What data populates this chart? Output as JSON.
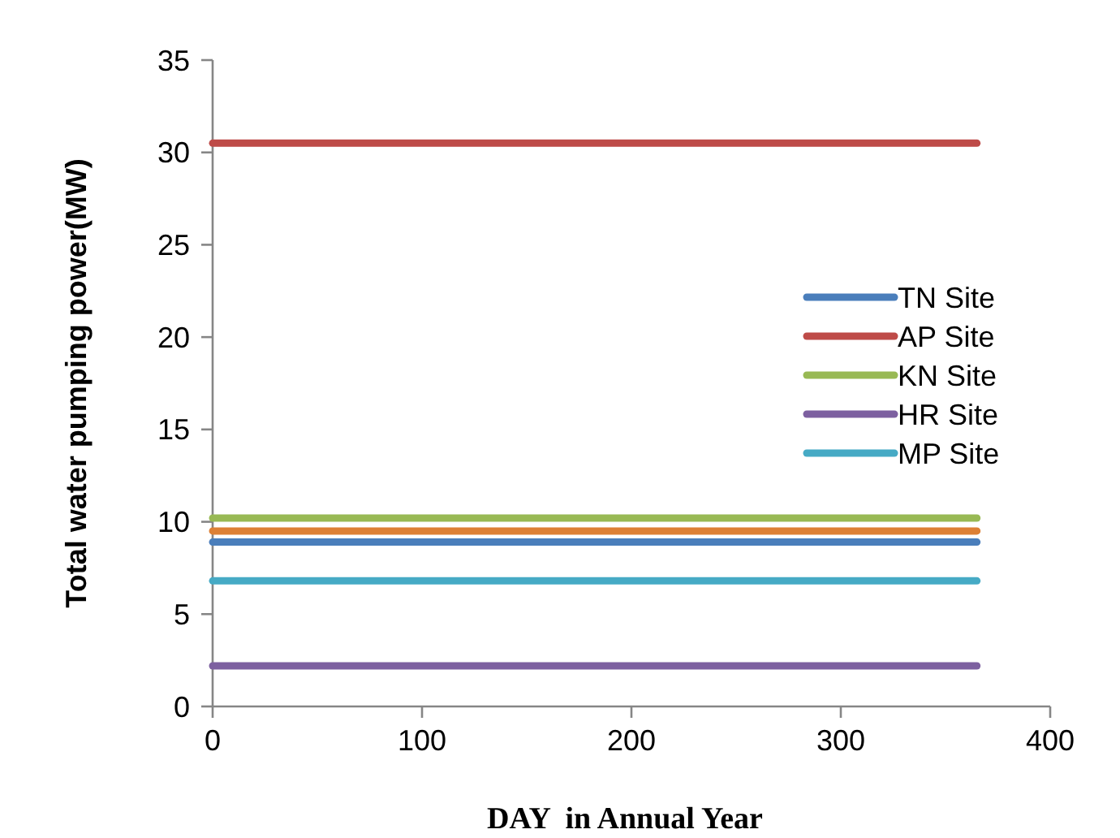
{
  "chart_data": {
    "type": "line",
    "xlabel": "DAY  in Annual Year",
    "ylabel": "Total water pumping power(MW)",
    "xlim": [
      0,
      400
    ],
    "xticks": [
      0,
      100,
      200,
      300,
      400
    ],
    "ylim": [
      0,
      35
    ],
    "yticks": [
      0,
      5,
      10,
      15,
      20,
      25,
      30,
      35
    ],
    "grid": false,
    "legend": "right",
    "marker": "none",
    "line_style": "solid",
    "x": [
      0,
      365
    ],
    "series": [
      {
        "name": "TN Site",
        "color": "#4a7ebb",
        "values": [
          8.9,
          8.9
        ]
      },
      {
        "name": "AP Site",
        "color": "#be4b48",
        "values": [
          30.5,
          30.5
        ]
      },
      {
        "name": "KN Site",
        "color": "#98b954",
        "values": [
          10.2,
          10.2
        ]
      },
      {
        "name": "HR Site",
        "color": "#7d60a0",
        "values": [
          2.2,
          2.2
        ]
      },
      {
        "name": "MP Site",
        "color": "#46aac5",
        "values": [
          6.8,
          6.8
        ]
      },
      {
        "color": "#dd8035",
        "values": [
          9.5,
          9.5
        ]
      }
    ]
  }
}
